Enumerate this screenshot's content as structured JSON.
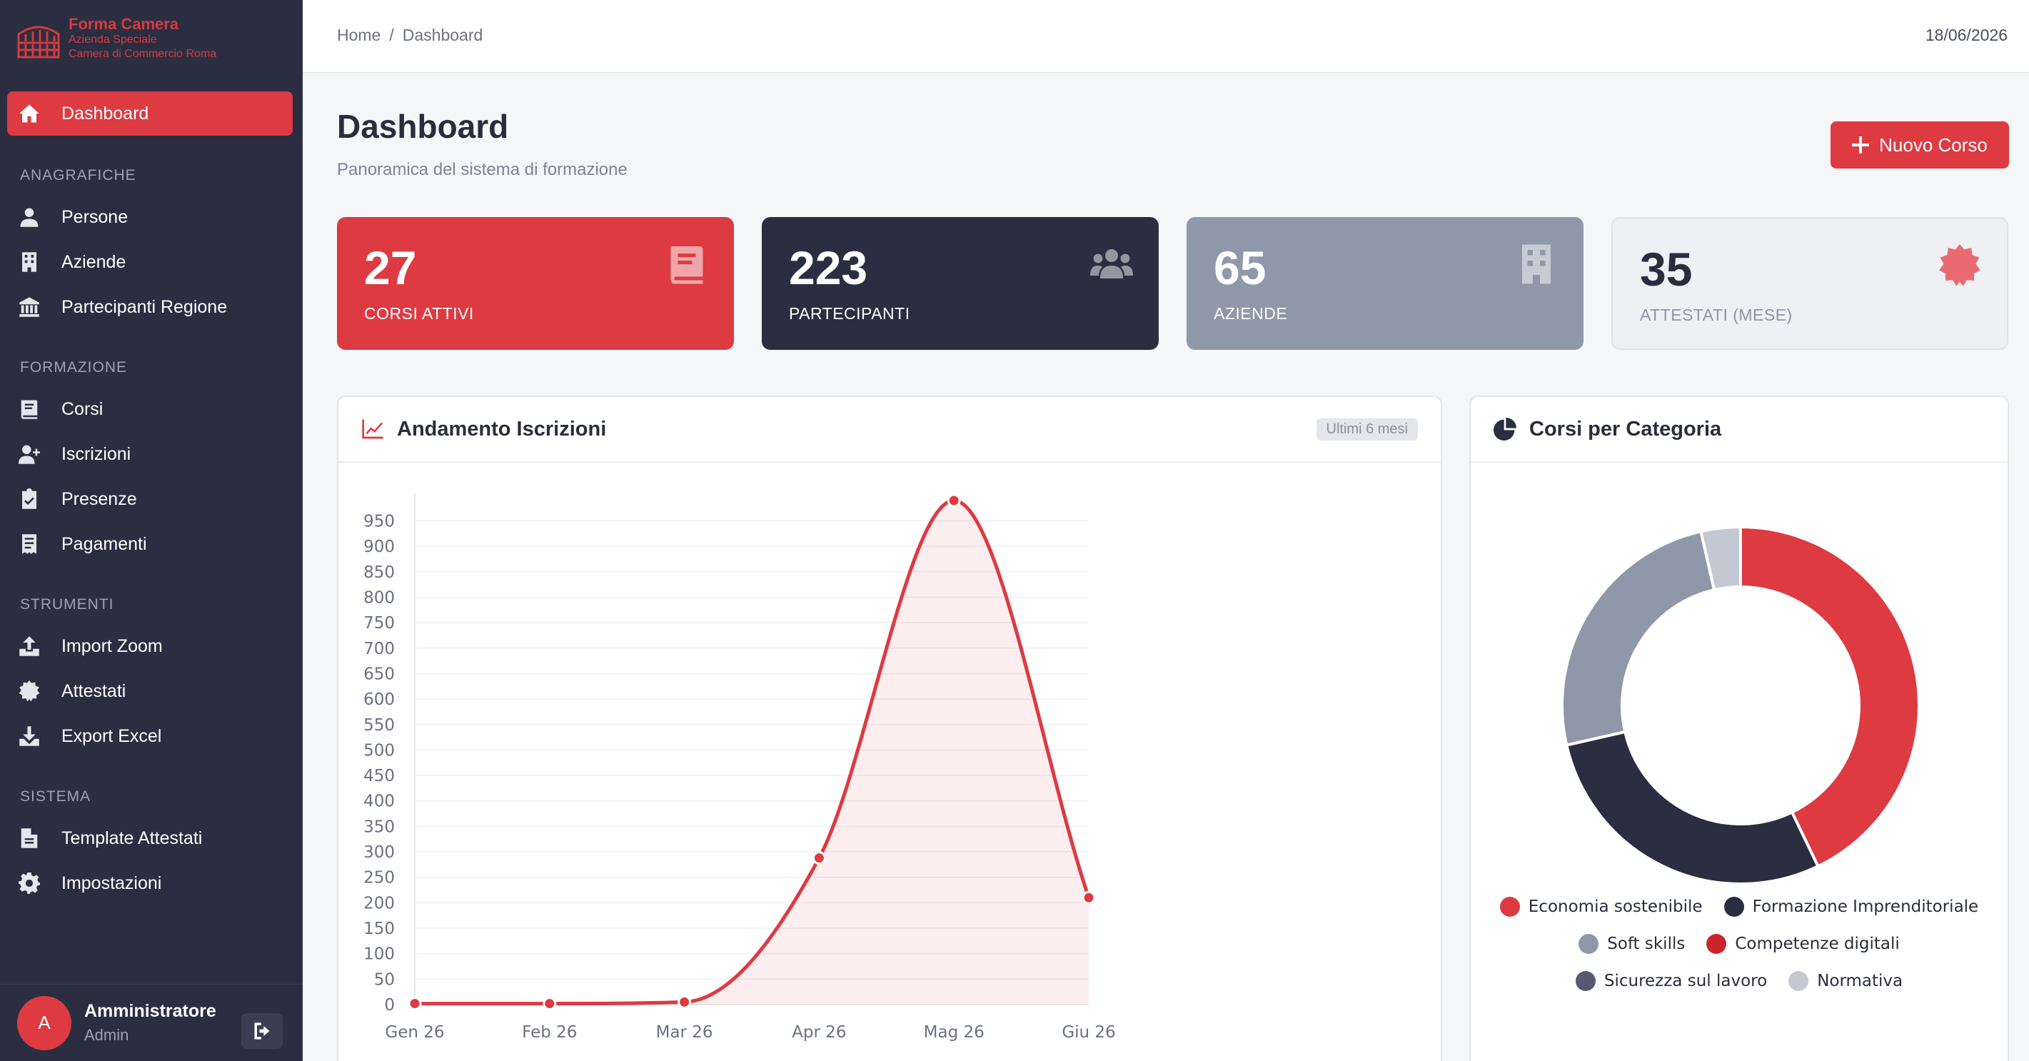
{
  "logo": {
    "line1": "Forma Camera",
    "line2": "Azienda Speciale",
    "line3": "Camera di Commercio Roma"
  },
  "sidebar": {
    "active": {
      "label": "Dashboard",
      "icon": "home-icon"
    },
    "sections": [
      {
        "title": "ANAGRAFICHE",
        "items": [
          {
            "label": "Persone",
            "icon": "user-icon"
          },
          {
            "label": "Aziende",
            "icon": "building-icon"
          },
          {
            "label": "Partecipanti Regione",
            "icon": "landmark-icon"
          }
        ]
      },
      {
        "title": "FORMAZIONE",
        "items": [
          {
            "label": "Corsi",
            "icon": "book-icon"
          },
          {
            "label": "Iscrizioni",
            "icon": "user-plus-icon"
          },
          {
            "label": "Presenze",
            "icon": "clipboard-check-icon"
          },
          {
            "label": "Pagamenti",
            "icon": "receipt-icon"
          }
        ]
      },
      {
        "title": "STRUMENTI",
        "items": [
          {
            "label": "Import Zoom",
            "icon": "upload-icon"
          },
          {
            "label": "Attestati",
            "icon": "certificate-icon"
          },
          {
            "label": "Export Excel",
            "icon": "download-icon"
          }
        ]
      },
      {
        "title": "SISTEMA",
        "items": [
          {
            "label": "Template Attestati",
            "icon": "file-icon"
          },
          {
            "label": "Impostazioni",
            "icon": "gear-icon"
          }
        ]
      }
    ]
  },
  "user": {
    "initial": "A",
    "name": "Amministratore",
    "role": "Admin"
  },
  "topbar": {
    "breadcrumb_home": "Home",
    "breadcrumb_sep": "/",
    "breadcrumb_current": "Dashboard",
    "date": "18/06/2026"
  },
  "header": {
    "title": "Dashboard",
    "subtitle": "Panoramica del sistema di formazione",
    "new_button": "Nuovo Corso"
  },
  "stats": [
    {
      "value": "27",
      "label": "CORSI ATTIVI",
      "icon": "book-icon"
    },
    {
      "value": "223",
      "label": "PARTECIPANTI",
      "icon": "users-icon"
    },
    {
      "value": "65",
      "label": "AZIENDE",
      "icon": "building-icon"
    },
    {
      "value": "35",
      "label": "ATTESTATI (MESE)",
      "icon": "certificate-icon"
    }
  ],
  "line_card": {
    "title": "Andamento Iscrizioni",
    "badge": "Ultimi 6 mesi",
    "icon": "chart-line-icon"
  },
  "donut_card": {
    "title": "Corsi per Categoria",
    "icon": "chart-pie-icon"
  },
  "colors": {
    "accent": "#dd3a42",
    "dark": "#2b2e40",
    "gray": "#8f98a9"
  },
  "chart_data": [
    {
      "type": "line",
      "title": "Andamento Iscrizioni",
      "categories": [
        "Gen 26",
        "Feb 26",
        "Mar 26",
        "Apr 26",
        "Mag 26",
        "Giu 26"
      ],
      "series": [
        {
          "values": [
            2,
            2,
            5,
            288,
            990,
            210
          ],
          "color": "#dd3a42"
        }
      ],
      "ylim": [
        0,
        990
      ],
      "yticks": [
        0,
        50,
        100,
        150,
        200,
        250,
        300,
        350,
        400,
        450,
        500,
        550,
        600,
        650,
        700,
        750,
        800,
        850,
        900,
        950
      ],
      "grid": true,
      "fill": true
    },
    {
      "type": "pie",
      "title": "Corsi per Categoria",
      "donut": true,
      "legend": "bottom",
      "slices": [
        {
          "label": "Economia sostenibile",
          "value": 12,
          "color": "#dd3a42"
        },
        {
          "label": "Formazione Imprenditoriale",
          "value": 8,
          "color": "#2b2e40"
        },
        {
          "label": "Soft skills",
          "value": 7,
          "color": "#8f98a9"
        },
        {
          "label": "Competenze digitali",
          "value": 0,
          "color": "#c9262c"
        },
        {
          "label": "Sicurezza sul lavoro",
          "value": 0,
          "color": "#555a70"
        },
        {
          "label": "Normativa",
          "value": 1,
          "color": "#c4c8d2"
        }
      ]
    }
  ]
}
